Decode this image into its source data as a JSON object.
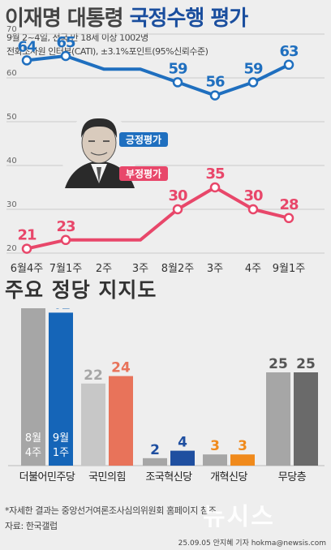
{
  "header": {
    "title_part1": "이재명 대통령",
    "title_part2": "국정수행 평가",
    "subtitle1": "9월 2~4일, 전국 만 18세 이상 1002명",
    "subtitle2": "전화조사원 인터뷰(CATI), ±3.1%포인트(95%신뢰수준)"
  },
  "colors": {
    "positive": "#1f6fbf",
    "negative": "#e8476a",
    "gray_bar": "#a6a6a6",
    "dark_gray_bar": "#6a6a6a",
    "dp_new": "#1565b8",
    "ppp_old": "#c7c7c7",
    "ppp_new": "#e8735a",
    "rebuild_new": "#1f4fa0",
    "reform_new": "#f08a1c",
    "background": "#eeeeee"
  },
  "chart_data": [
    {
      "type": "line",
      "x": [
        "6월4주",
        "7월1주",
        "2주",
        "3주",
        "8월2주",
        "3주",
        "4주",
        "9월1주"
      ],
      "ylim": [
        20,
        70
      ],
      "yticks": [
        20,
        30,
        40,
        50,
        60,
        70
      ],
      "series": [
        {
          "name": "긍정평가",
          "values": [
            64,
            65,
            62,
            62,
            59,
            56,
            59,
            63
          ],
          "labels": [
            "64",
            "65",
            "",
            "",
            "59",
            "56",
            "59",
            "63"
          ]
        },
        {
          "name": "부정평가",
          "values": [
            21,
            23,
            23,
            23,
            30,
            35,
            30,
            28
          ],
          "labels": [
            "21",
            "23",
            "",
            "",
            "30",
            "35",
            "30",
            "28"
          ]
        }
      ],
      "grid": true
    },
    {
      "type": "bar",
      "title": "주요 정당 지지도",
      "categories": [
        "더불어민주당",
        "국민의힘",
        "조국혁신당",
        "개혁신당",
        "무당층"
      ],
      "series": [
        {
          "name": "8월 4주",
          "values": [
            44,
            22,
            2,
            3,
            25
          ]
        },
        {
          "name": "9월 1주",
          "values": [
            41,
            24,
            4,
            3,
            25
          ]
        }
      ],
      "bar_inline_labels": {
        "old_line1": "8월",
        "old_line2": "4주",
        "new_line1": "9월",
        "new_line2": "1주"
      }
    }
  ],
  "footer": {
    "note": "*자세한 결과는 중앙선거여론조사심의위원회 홈페이지 참조",
    "source": "자료: 한국갤럽",
    "credit": "25.09.05 안지혜 기자 hokma@newsis.com",
    "watermark": "뉴시스"
  }
}
